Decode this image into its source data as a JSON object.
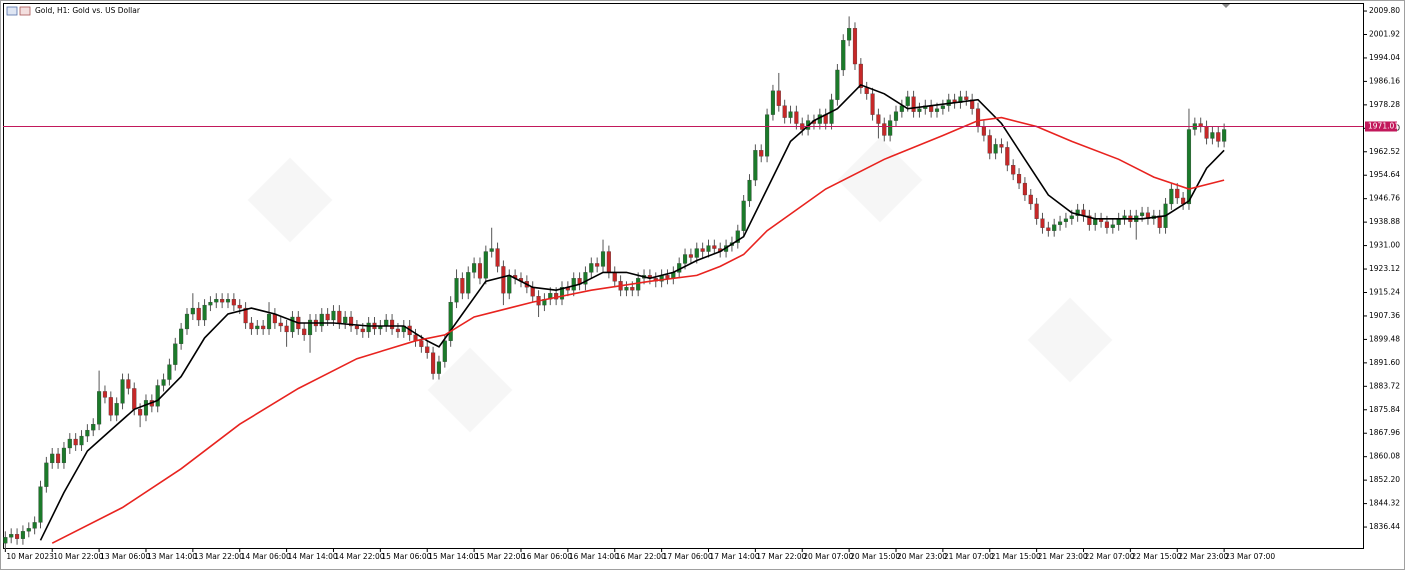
{
  "chart_data": {
    "type": "candlestick",
    "title": "Gold, H1:  Gold vs. US Dollar",
    "up_color": "#1b7a2a",
    "down_color": "#c62828",
    "wick_color": "#555555",
    "open": [
      1831,
      1833,
      1834,
      1832.5,
      1835,
      1836,
      1838,
      1850,
      1858,
      1861,
      1858,
      1863,
      1866,
      1864,
      1867,
      1869,
      1871,
      1882,
      1880,
      1874,
      1878,
      1886,
      1883,
      1876,
      1874,
      1879,
      1877,
      1884,
      1886,
      1891,
      1898,
      1903,
      1908,
      1910,
      1906,
      1911,
      1912,
      1913,
      1912,
      1913,
      1911,
      1910,
      1905,
      1903,
      1904,
      1903,
      1908,
      1905,
      1904,
      1902,
      1907,
      1903,
      1901,
      1906,
      1904,
      1908,
      1906,
      1909,
      1905,
      1907,
      1904,
      1903,
      1902,
      1905,
      1903,
      1904,
      1906,
      1903,
      1902,
      1904,
      1901,
      1899,
      1897,
      1895,
      1888,
      1892,
      1899,
      1912,
      1920,
      1915,
      1922,
      1925,
      1920,
      1929,
      1930,
      1924,
      1915,
      1921,
      1920,
      1919,
      1917,
      1914,
      1911,
      1913,
      1915,
      1913,
      1917,
      1916,
      1920,
      1918,
      1922,
      1925,
      1924,
      1929,
      1922,
      1919,
      1916,
      1917,
      1916,
      1920,
      1921,
      1920,
      1919,
      1921,
      1920,
      1922,
      1925,
      1928,
      1927,
      1930,
      1929,
      1931,
      1930,
      1929,
      1931,
      1932,
      1936,
      1946,
      1953,
      1963,
      1961,
      1975,
      1983,
      1978,
      1974,
      1976,
      1972,
      1970,
      1973,
      1972,
      1975,
      1972,
      1980,
      1990,
      2000,
      2004,
      1992,
      1984,
      1982,
      1975,
      1972,
      1968,
      1973,
      1976,
      1978,
      1981,
      1976,
      1977,
      1978,
      1976,
      1977,
      1978,
      1980,
      1979,
      1981,
      1980,
      1977,
      1971,
      1968,
      1962,
      1965,
      1964,
      1958,
      1955,
      1952,
      1948,
      1945,
      1940,
      1937,
      1936,
      1938,
      1939,
      1940,
      1941,
      1943,
      1941,
      1938,
      1940,
      1939,
      1937,
      1938,
      1940,
      1941,
      1939,
      1941,
      1942,
      1940,
      1941,
      1937,
      1945,
      1950,
      1947,
      1945,
      1970,
      1972,
      1971,
      1967,
      1969,
      1966
    ],
    "high": [
      1835,
      1836,
      1836,
      1837,
      1838,
      1840,
      1852,
      1860,
      1863,
      1863,
      1865,
      1868,
      1868,
      1869,
      1871,
      1873,
      1889,
      1884,
      1882,
      1880,
      1888,
      1888,
      1885,
      1878,
      1881,
      1881,
      1886,
      1888,
      1893,
      1900,
      1905,
      1910,
      1915,
      1912,
      1913,
      1914,
      1915,
      1915,
      1915,
      1915,
      1913,
      1912,
      1907,
      1906,
      1906,
      1912,
      1910,
      1907,
      1906,
      1909,
      1909,
      1905,
      1908,
      1908,
      1910,
      1910,
      1911,
      1911,
      1909,
      1909,
      1906,
      1905,
      1907,
      1907,
      1906,
      1908,
      1908,
      1905,
      1906,
      1906,
      1903,
      1901,
      1899,
      1897,
      1894,
      1901,
      1914,
      1923,
      1922,
      1924,
      1927,
      1927,
      1931,
      1937,
      1932,
      1926,
      1923,
      1923,
      1922,
      1921,
      1919,
      1916,
      1915,
      1917,
      1917,
      1919,
      1919,
      1922,
      1922,
      1924,
      1927,
      1927,
      1933,
      1931,
      1924,
      1921,
      1919,
      1919,
      1922,
      1923,
      1923,
      1922,
      1923,
      1923,
      1924,
      1927,
      1930,
      1930,
      1932,
      1932,
      1933,
      1933,
      1932,
      1933,
      1934,
      1938,
      1948,
      1955,
      1965,
      1965,
      1977,
      1985,
      1989,
      1980,
      1978,
      1978,
      1974,
      1975,
      1975,
      1977,
      1977,
      1982,
      1992,
      2002,
      2008,
      2006,
      1994,
      1986,
      1984,
      1977,
      1974,
      1975,
      1978,
      1980,
      1983,
      1983,
      1979,
      1980,
      1980,
      1979,
      1980,
      1982,
      1982,
      1983,
      1983,
      1982,
      1979,
      1973,
      1970,
      1967,
      1967,
      1966,
      1960,
      1957,
      1954,
      1950,
      1947,
      1942,
      1939,
      1940,
      1941,
      1942,
      1943,
      1945,
      1945,
      1943,
      1942,
      1942,
      1941,
      1940,
      1942,
      1943,
      1943,
      1943,
      1944,
      1944,
      1943,
      1943,
      1947,
      1952,
      1952,
      1949,
      1977,
      1974,
      1974,
      1973,
      1971,
      1971,
      1972
    ],
    "low": [
      1829,
      1831,
      1830.5,
      1830.5,
      1833,
      1834,
      1836,
      1848,
      1856,
      1856,
      1856,
      1861,
      1862,
      1862,
      1865,
      1867,
      1869,
      1878,
      1872,
      1872,
      1876,
      1881,
      1874,
      1870,
      1872,
      1875,
      1875,
      1882,
      1884,
      1889,
      1896,
      1901,
      1906,
      1904,
      1904,
      1909,
      1910,
      1910,
      1910,
      1909,
      1908,
      1903,
      1901,
      1901,
      1901,
      1901,
      1903,
      1902,
      1897,
      1900,
      1901,
      1899,
      1895,
      1902,
      1902,
      1904,
      1904,
      1903,
      1903,
      1902,
      1901,
      1900,
      1900,
      1901,
      1901,
      1902,
      1901,
      1900,
      1900,
      1899,
      1897,
      1895,
      1893,
      1886,
      1886,
      1890,
      1897,
      1910,
      1913,
      1913,
      1920,
      1918,
      1918,
      1927,
      1922,
      1911,
      1913,
      1918,
      1917,
      1915,
      1912,
      1907,
      1909,
      1911,
      1911,
      1911,
      1914,
      1914,
      1916,
      1916,
      1920,
      1922,
      1922,
      1920,
      1917,
      1914,
      1914,
      1914,
      1914,
      1918,
      1918,
      1917,
      1917,
      1918,
      1918,
      1920,
      1923,
      1925,
      1925,
      1927,
      1927,
      1928,
      1927,
      1927,
      1929,
      1930,
      1934,
      1944,
      1951,
      1959,
      1959,
      1973,
      1976,
      1972,
      1972,
      1970,
      1968,
      1968,
      1970,
      1970,
      1970,
      1970,
      1978,
      1988,
      1998,
      1990,
      1982,
      1980,
      1973,
      1967,
      1966,
      1966,
      1971,
      1974,
      1976,
      1974,
      1974,
      1975,
      1974,
      1974,
      1975,
      1976,
      1977,
      1977,
      1978,
      1975,
      1969,
      1966,
      1960,
      1960,
      1962,
      1956,
      1953,
      1950,
      1946,
      1943,
      1938,
      1935,
      1934,
      1934,
      1936,
      1937,
      1938,
      1939,
      1939,
      1936,
      1936,
      1937,
      1935,
      1935,
      1936,
      1938,
      1937,
      1933,
      1939,
      1938,
      1938,
      1935,
      1935,
      1943,
      1945,
      1943,
      1943,
      1968,
      1969,
      1965,
      1965,
      1964,
      1964
    ],
    "close": [
      1833,
      1834,
      1832.5,
      1835,
      1836,
      1838,
      1850,
      1858,
      1861,
      1858,
      1863,
      1866,
      1864,
      1867,
      1869,
      1871,
      1882,
      1880,
      1874,
      1878,
      1886,
      1883,
      1876,
      1874,
      1879,
      1877,
      1884,
      1886,
      1891,
      1898,
      1903,
      1908,
      1910,
      1906,
      1911,
      1912,
      1913,
      1912,
      1913,
      1911,
      1910,
      1905,
      1903,
      1904,
      1903,
      1908,
      1905,
      1904,
      1902,
      1907,
      1903,
      1901,
      1906,
      1904,
      1908,
      1906,
      1909,
      1905,
      1907,
      1904,
      1903,
      1902,
      1905,
      1903,
      1904,
      1906,
      1903,
      1902,
      1904,
      1901,
      1899,
      1897,
      1895,
      1888,
      1892,
      1899,
      1912,
      1920,
      1915,
      1922,
      1925,
      1920,
      1929,
      1930,
      1924,
      1915,
      1921,
      1920,
      1919,
      1917,
      1914,
      1911,
      1913,
      1915,
      1913,
      1917,
      1916,
      1920,
      1918,
      1922,
      1925,
      1924,
      1929,
      1922,
      1919,
      1916,
      1917,
      1916,
      1920,
      1921,
      1920,
      1919,
      1921,
      1920,
      1922,
      1925,
      1928,
      1927,
      1930,
      1929,
      1931,
      1930,
      1929,
      1931,
      1932,
      1936,
      1946,
      1953,
      1963,
      1961,
      1975,
      1983,
      1978,
      1974,
      1976,
      1972,
      1970,
      1973,
      1972,
      1975,
      1972,
      1980,
      1990,
      2000,
      2004,
      1992,
      1984,
      1982,
      1975,
      1972,
      1968,
      1973,
      1976,
      1978,
      1981,
      1976,
      1977,
      1978,
      1976,
      1977,
      1978,
      1980,
      1979,
      1981,
      1980,
      1977,
      1971,
      1968,
      1962,
      1965,
      1964,
      1958,
      1955,
      1952,
      1948,
      1945,
      1940,
      1937,
      1936,
      1938,
      1939,
      1940,
      1941,
      1943,
      1941,
      1938,
      1940,
      1939,
      1937,
      1938,
      1940,
      1941,
      1939,
      1941,
      1942,
      1940,
      1941,
      1937,
      1945,
      1950,
      1947,
      1945,
      1970,
      1972,
      1971,
      1967,
      1969,
      1966,
      1970
    ],
    "lines": [
      {
        "color": "#000000",
        "x": [
          6,
          10,
          14,
          18,
          22,
          26,
          30,
          34,
          38,
          42,
          46,
          50,
          56,
          62,
          68,
          72,
          74,
          78,
          82,
          86,
          90,
          94,
          98,
          102,
          106,
          110,
          114,
          118,
          122,
          126,
          130,
          134,
          138,
          142,
          146,
          150,
          154,
          158,
          162,
          166,
          170,
          174,
          178,
          182,
          186,
          190,
          194,
          198,
          202,
          205,
          208
        ],
        "values": [
          1832,
          1848,
          1862,
          1869,
          1876,
          1879,
          1887,
          1900,
          1908,
          1910,
          1908,
          1905,
          1905,
          1904,
          1904,
          1899,
          1897,
          1908,
          1919,
          1921,
          1917,
          1916,
          1918,
          1922,
          1922,
          1920,
          1922,
          1926,
          1929,
          1934,
          1950,
          1966,
          1973,
          1977,
          1985,
          1982,
          1977,
          1978,
          1979,
          1980,
          1972,
          1960,
          1948,
          1942,
          1940,
          1940,
          1940,
          1941,
          1946,
          1957,
          1963
        ]
      },
      {
        "color": "#e8231f",
        "x": [
          8,
          20,
          30,
          40,
          50,
          60,
          70,
          75,
          80,
          90,
          100,
          110,
          118,
          122,
          126,
          130,
          140,
          150,
          160,
          166,
          170,
          176,
          182,
          190,
          196,
          202,
          208
        ],
        "values": [
          1831,
          1843,
          1856,
          1871,
          1883,
          1893,
          1899,
          1901,
          1907,
          1912,
          1916,
          1919,
          1921,
          1924,
          1928,
          1936,
          1950,
          1960,
          1968,
          1973,
          1974,
          1971,
          1966,
          1960,
          1954,
          1950,
          1953
        ]
      }
    ],
    "price_line": 1971.01,
    "price_line_color": "#c2185b",
    "ylim": [
      1829.4,
      2012.5
    ],
    "yticks": [
      {
        "value": 2009.8,
        "label": "2009.80"
      },
      2001.92,
      1994.04,
      1986.16,
      1978.28,
      {
        "value": 1970.4,
        "label": "1970.40"
      },
      1962.52,
      1954.64,
      1946.76,
      1938.88,
      {
        "value": 1931,
        "label": "1931.00"
      },
      1923.12,
      1915.24,
      1907.36,
      1899.48,
      {
        "value": 1891.6,
        "label": "1891.60"
      },
      1883.72,
      1875.84,
      1867.96,
      1860.08,
      {
        "value": 1852.2,
        "label": "1852.20"
      },
      1844.32,
      1836.44
    ],
    "xlim": [
      -0.4,
      231.7
    ],
    "xticks": [
      {
        "value": 0,
        "label": "10 Mar 2023"
      },
      {
        "value": 8,
        "label": "10 Mar 22:00"
      },
      {
        "value": 16,
        "label": "13 Mar 06:00"
      },
      {
        "value": 24,
        "label": "13 Mar 14:00"
      },
      {
        "value": 32,
        "label": "13 Mar 22:00"
      },
      {
        "value": 40,
        "label": "14 Mar 06:00"
      },
      {
        "value": 48,
        "label": "14 Mar 14:00"
      },
      {
        "value": 56,
        "label": "14 Mar 22:00"
      },
      {
        "value": 64,
        "label": "15 Mar 06:00"
      },
      {
        "value": 72,
        "label": "15 Mar 14:00"
      },
      {
        "value": 80,
        "label": "15 Mar 22:00"
      },
      {
        "value": 88,
        "label": "16 Mar 06:00"
      },
      {
        "value": 96,
        "label": "16 Mar 14:00"
      },
      {
        "value": 104,
        "label": "16 Mar 22:00"
      },
      {
        "value": 112,
        "label": "17 Mar 06:00"
      },
      {
        "value": 120,
        "label": "17 Mar 14:00"
      },
      {
        "value": 128,
        "label": "17 Mar 22:00"
      },
      {
        "value": 136,
        "label": "20 Mar 07:00"
      },
      {
        "value": 144,
        "label": "20 Mar 15:00"
      },
      {
        "value": 152,
        "label": "20 Mar 23:00"
      },
      {
        "value": 160,
        "label": "21 Mar 07:00"
      },
      {
        "value": 168,
        "label": "21 Mar 15:00"
      },
      {
        "value": 176,
        "label": "21 Mar 23:00"
      },
      {
        "value": 184,
        "label": "22 Mar 07:00"
      },
      {
        "value": 192,
        "label": "22 Mar 15:00"
      },
      {
        "value": 200,
        "label": "22 Mar 23:00"
      },
      {
        "value": 208,
        "label": "23 Mar 07:00"
      }
    ]
  }
}
